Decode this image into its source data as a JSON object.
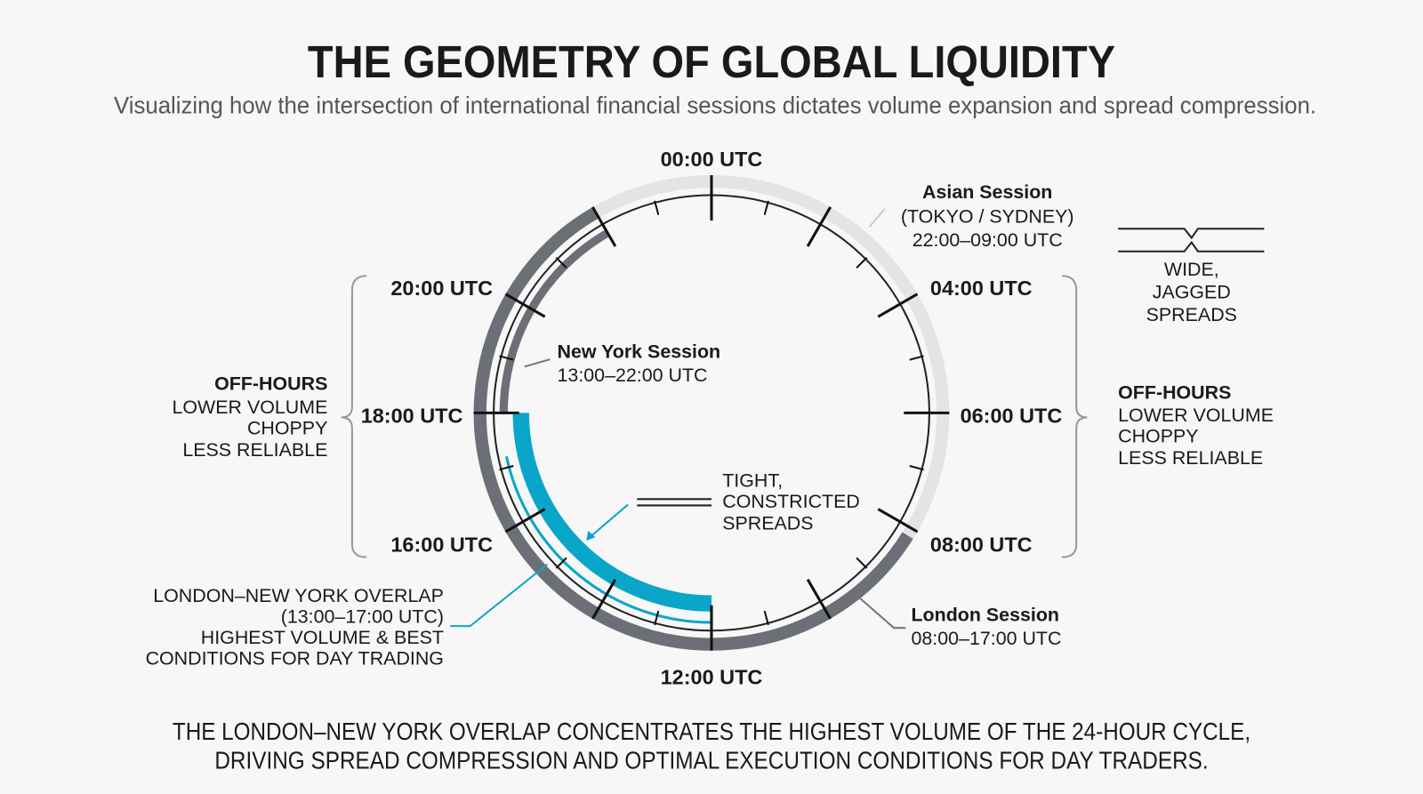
{
  "header": {
    "title": "THE GEOMETRY OF GLOBAL LIQUIDITY",
    "subtitle": "Visualizing how the intersection of international financial sessions dictates volume expansion and spread compression."
  },
  "hour_labels": [
    "00:00 UTC",
    "04:00 UTC",
    "06:00 UTC",
    "08:00 UTC",
    "12:00 UTC",
    "16:00 UTC",
    "18:00 UTC",
    "20:00 UTC"
  ],
  "sessions": {
    "asian": {
      "name": "Asian Session",
      "detail": "(TOKYO / SYDNEY)",
      "hours": "22:00–09:00 UTC"
    },
    "new_york": {
      "name": "New York Session",
      "hours": "13:00–22:00 UTC"
    },
    "london": {
      "name": "London Session",
      "hours": "08:00–17:00 UTC"
    }
  },
  "off_hours_left": {
    "title": "OFF-HOURS",
    "lines": [
      "LOWER VOLUME",
      "CHOPPY",
      "LESS RELIABLE"
    ]
  },
  "off_hours_right": {
    "title": "OFF-HOURS",
    "lines": [
      "LOWER VOLUME",
      "CHOPPY",
      "LESS RELIABLE"
    ]
  },
  "wide_spreads": [
    "WIDE,",
    "JAGGED",
    "SPREADS"
  ],
  "tight_spreads": [
    "TIGHT,",
    "CONSTRICTED",
    "SPREADS"
  ],
  "overlap_note": [
    "LONDON–NEW YORK OVERLAP",
    "(13:00–17:00 UTC)",
    "HIGHEST VOLUME & BEST",
    "CONDITIONS FOR DAY TRADING"
  ],
  "footer": [
    "THE LONDON–NEW YORK OVERLAP CONCENTRATES THE HIGHEST VOLUME OF THE 24-HOUR CYCLE,",
    "DRIVING SPREAD COMPRESSION AND OPTIMAL EXECUTION CONDITIONS FOR DAY TRADERS."
  ]
}
